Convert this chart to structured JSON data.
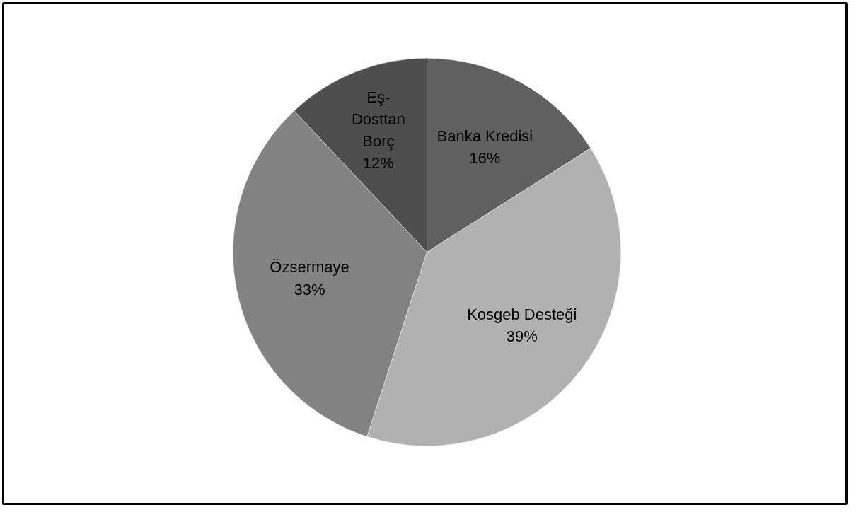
{
  "chart_data": {
    "type": "pie",
    "categories": [
      "Banka Kredisi",
      "Kosgeb Desteği",
      "Özsermaye",
      "Eş-Dosttan Borç"
    ],
    "values": [
      16,
      39,
      33,
      12
    ],
    "value_labels": [
      "16%",
      "39%",
      "33%",
      "12%"
    ],
    "colors": [
      "#606060",
      "#b1b1b1",
      "#828282",
      "#4e4e4e"
    ]
  }
}
